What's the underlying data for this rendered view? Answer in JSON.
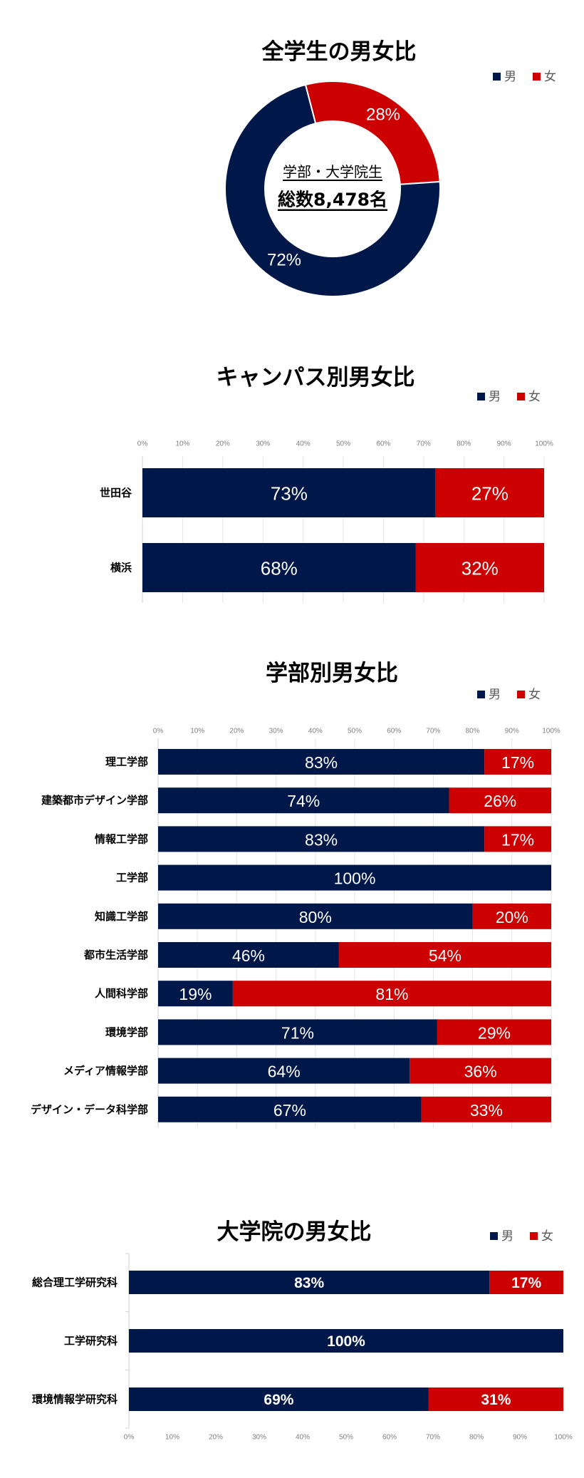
{
  "colors": {
    "male": "#00174A",
    "female": "#CC0000",
    "grid": "#E3E3E3",
    "axis": "#D0D0D0"
  },
  "legend": {
    "male": "男",
    "female": "女"
  },
  "chart_data": [
    {
      "type": "pie",
      "variant": "donut",
      "title": "全学生の男女比",
      "center_text": {
        "line1": "学部・大学院生",
        "line2": "総数8,478名"
      },
      "legend": [
        "男",
        "女"
      ],
      "legend_position": "top-right",
      "slices": [
        {
          "label": "女",
          "value": 28
        },
        {
          "label": "男",
          "value": 72
        }
      ]
    },
    {
      "type": "bar",
      "orientation": "horizontal",
      "stacked": true,
      "title": "キャンパス別男女比",
      "legend": [
        "男",
        "女"
      ],
      "legend_position": "top-right",
      "categories": [
        "世田谷",
        "横浜"
      ],
      "series": [
        {
          "name": "男",
          "values": [
            73,
            68
          ]
        },
        {
          "name": "女",
          "values": [
            27,
            32
          ]
        }
      ],
      "xlim": [
        0,
        100
      ],
      "xticks": [
        "0%",
        "10%",
        "20%",
        "30%",
        "40%",
        "50%",
        "60%",
        "70%",
        "80%",
        "90%",
        "100%"
      ],
      "xticks_position": "top",
      "grid": true
    },
    {
      "type": "bar",
      "orientation": "horizontal",
      "stacked": true,
      "title": "学部別男女比",
      "legend": [
        "男",
        "女"
      ],
      "legend_position": "top-right",
      "categories": [
        "理工学部",
        "建築都市デザイン学部",
        "情報工学部",
        "工学部",
        "知識工学部",
        "都市生活学部",
        "人間科学部",
        "環境学部",
        "メディア情報学部",
        "デザイン・データ科学部"
      ],
      "series": [
        {
          "name": "男",
          "values": [
            83,
            74,
            83,
            100,
            80,
            46,
            19,
            71,
            64,
            67
          ]
        },
        {
          "name": "女",
          "values": [
            17,
            26,
            17,
            0,
            20,
            54,
            81,
            29,
            36,
            33
          ]
        }
      ],
      "xlim": [
        0,
        100
      ],
      "xticks": [
        "0%",
        "10%",
        "20%",
        "30%",
        "40%",
        "50%",
        "60%",
        "70%",
        "80%",
        "90%",
        "100%"
      ],
      "xticks_position": "top",
      "grid": true
    },
    {
      "type": "bar",
      "orientation": "horizontal",
      "stacked": true,
      "title": "大学院の男女比",
      "legend": [
        "男",
        "女"
      ],
      "legend_position": "top-right",
      "categories": [
        "総合理工学研究科",
        "工学研究科",
        "環境情報学研究科"
      ],
      "series": [
        {
          "name": "男",
          "values": [
            83,
            100,
            69
          ]
        },
        {
          "name": "女",
          "values": [
            17,
            0,
            31
          ]
        }
      ],
      "xlim": [
        0,
        100
      ],
      "xticks": [
        "0%",
        "10%",
        "20%",
        "30%",
        "40%",
        "50%",
        "60%",
        "70%",
        "80%",
        "90%",
        "100%"
      ],
      "xticks_position": "bottom",
      "grid": false
    }
  ]
}
